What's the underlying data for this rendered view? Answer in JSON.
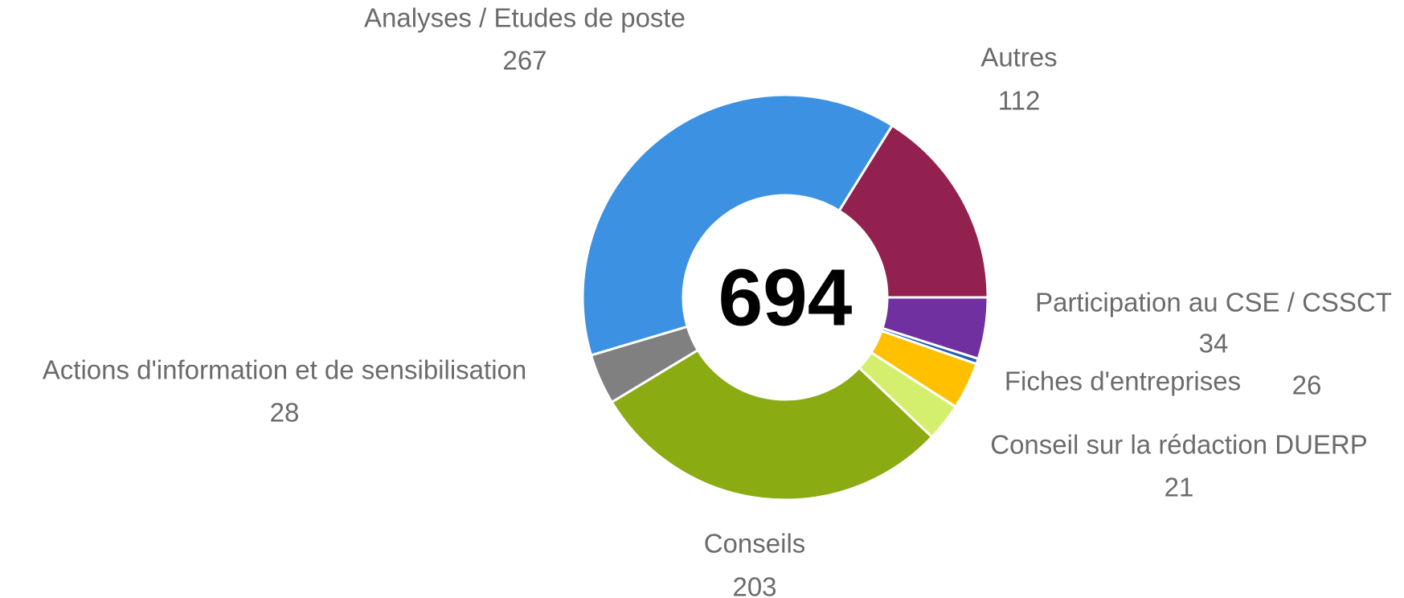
{
  "chart_data": {
    "type": "donut",
    "total": 694,
    "categories": [
      "Autres",
      "Participation au CSE / CSSCT",
      null,
      "Fiches d'entreprises",
      "Conseil sur la rédaction DUERP",
      "Conseils",
      "Actions d'information et de sensibilisation",
      "Analyses / Etudes de poste"
    ],
    "values": [
      112,
      34,
      3,
      26,
      21,
      203,
      28,
      267
    ],
    "colors": [
      "#93214f",
      "#7030a0",
      "#1f5fb0",
      "#ffc000",
      "#d4ef6e",
      "#8aab12",
      "#808080",
      "#3d91e2"
    ]
  }
}
